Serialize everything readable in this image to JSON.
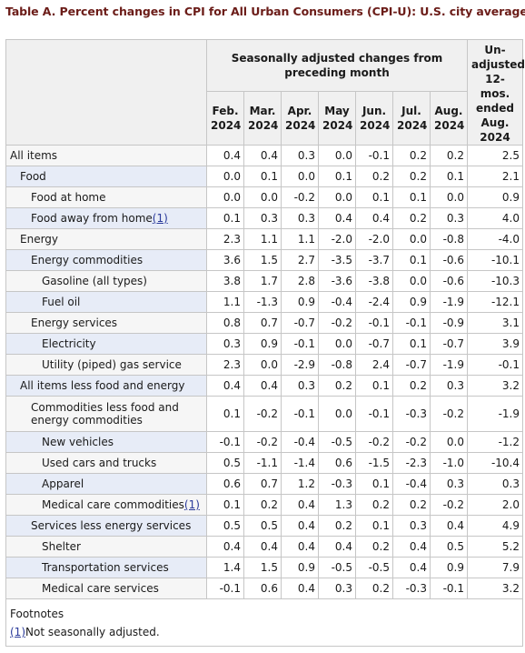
{
  "title": "Table A. Percent changes in CPI for All Urban Consumers (CPI-U): U.S. city average",
  "header": {
    "sa_group": "Seasonally adjusted changes from preceding month",
    "unadjusted": "Un-adjusted 12-mos. ended Aug. 2024",
    "months": [
      "Feb. 2024",
      "Mar. 2024",
      "Apr. 2024",
      "May 2024",
      "Jun. 2024",
      "Jul. 2024",
      "Aug. 2024"
    ]
  },
  "rows": [
    {
      "label": "All items",
      "level": 0,
      "fn": "",
      "values": [
        "0.4",
        "0.4",
        "0.3",
        "0.0",
        "-0.1",
        "0.2",
        "0.2",
        "2.5"
      ]
    },
    {
      "label": "Food",
      "level": 1,
      "fn": "",
      "values": [
        "0.0",
        "0.1",
        "0.0",
        "0.1",
        "0.2",
        "0.2",
        "0.1",
        "2.1"
      ]
    },
    {
      "label": "Food at home",
      "level": 2,
      "fn": "",
      "values": [
        "0.0",
        "0.0",
        "-0.2",
        "0.0",
        "0.1",
        "0.1",
        "0.0",
        "0.9"
      ]
    },
    {
      "label": "Food away from home",
      "level": 2,
      "fn": "(1)",
      "values": [
        "0.1",
        "0.3",
        "0.3",
        "0.4",
        "0.4",
        "0.2",
        "0.3",
        "4.0"
      ]
    },
    {
      "label": "Energy",
      "level": 1,
      "fn": "",
      "values": [
        "2.3",
        "1.1",
        "1.1",
        "-2.0",
        "-2.0",
        "0.0",
        "-0.8",
        "-4.0"
      ]
    },
    {
      "label": "Energy commodities",
      "level": 2,
      "fn": "",
      "values": [
        "3.6",
        "1.5",
        "2.7",
        "-3.5",
        "-3.7",
        "0.1",
        "-0.6",
        "-10.1"
      ]
    },
    {
      "label": "Gasoline (all types)",
      "level": 3,
      "fn": "",
      "values": [
        "3.8",
        "1.7",
        "2.8",
        "-3.6",
        "-3.8",
        "0.0",
        "-0.6",
        "-10.3"
      ]
    },
    {
      "label": "Fuel oil",
      "level": 3,
      "fn": "",
      "values": [
        "1.1",
        "-1.3",
        "0.9",
        "-0.4",
        "-2.4",
        "0.9",
        "-1.9",
        "-12.1"
      ]
    },
    {
      "label": "Energy services",
      "level": 2,
      "fn": "",
      "values": [
        "0.8",
        "0.7",
        "-0.7",
        "-0.2",
        "-0.1",
        "-0.1",
        "-0.9",
        "3.1"
      ]
    },
    {
      "label": "Electricity",
      "level": 3,
      "fn": "",
      "values": [
        "0.3",
        "0.9",
        "-0.1",
        "0.0",
        "-0.7",
        "0.1",
        "-0.7",
        "3.9"
      ]
    },
    {
      "label": "Utility (piped) gas service",
      "level": 3,
      "fn": "",
      "values": [
        "2.3",
        "0.0",
        "-2.9",
        "-0.8",
        "2.4",
        "-0.7",
        "-1.9",
        "-0.1"
      ]
    },
    {
      "label": "All items less food and energy",
      "level": 1,
      "fn": "",
      "values": [
        "0.4",
        "0.4",
        "0.3",
        "0.2",
        "0.1",
        "0.2",
        "0.3",
        "3.2"
      ]
    },
    {
      "label": "Commodities less food and energy commodities",
      "level": 2,
      "fn": "",
      "tall": true,
      "values": [
        "0.1",
        "-0.2",
        "-0.1",
        "0.0",
        "-0.1",
        "-0.3",
        "-0.2",
        "-1.9"
      ]
    },
    {
      "label": "New vehicles",
      "level": 3,
      "fn": "",
      "values": [
        "-0.1",
        "-0.2",
        "-0.4",
        "-0.5",
        "-0.2",
        "-0.2",
        "0.0",
        "-1.2"
      ]
    },
    {
      "label": "Used cars and trucks",
      "level": 3,
      "fn": "",
      "values": [
        "0.5",
        "-1.1",
        "-1.4",
        "0.6",
        "-1.5",
        "-2.3",
        "-1.0",
        "-10.4"
      ]
    },
    {
      "label": "Apparel",
      "level": 3,
      "fn": "",
      "values": [
        "0.6",
        "0.7",
        "1.2",
        "-0.3",
        "0.1",
        "-0.4",
        "0.3",
        "0.3"
      ]
    },
    {
      "label": "Medical care commodities",
      "level": 3,
      "fn": "(1)",
      "values": [
        "0.1",
        "0.2",
        "0.4",
        "1.3",
        "0.2",
        "0.2",
        "-0.2",
        "2.0"
      ]
    },
    {
      "label": "Services less energy services",
      "level": 2,
      "fn": "",
      "values": [
        "0.5",
        "0.5",
        "0.4",
        "0.2",
        "0.1",
        "0.3",
        "0.4",
        "4.9"
      ]
    },
    {
      "label": "Shelter",
      "level": 3,
      "fn": "",
      "values": [
        "0.4",
        "0.4",
        "0.4",
        "0.4",
        "0.2",
        "0.4",
        "0.5",
        "5.2"
      ]
    },
    {
      "label": "Transportation services",
      "level": 3,
      "fn": "",
      "values": [
        "1.4",
        "1.5",
        "0.9",
        "-0.5",
        "-0.5",
        "0.4",
        "0.9",
        "7.9"
      ]
    },
    {
      "label": "Medical care services",
      "level": 3,
      "fn": "",
      "values": [
        "-0.1",
        "0.6",
        "0.4",
        "0.3",
        "0.2",
        "-0.3",
        "-0.1",
        "3.2"
      ]
    }
  ],
  "footnotes": {
    "title": "Footnotes",
    "items": [
      {
        "ref": "(1)",
        "text": "Not seasonally adjusted."
      }
    ]
  },
  "colors": {
    "title": "#6b1c18",
    "header_bg": "#f0f0f0",
    "row_even_label": "#e7ecf7",
    "row_odd_label": "#f6f6f6",
    "border": "#c6c6c6"
  }
}
